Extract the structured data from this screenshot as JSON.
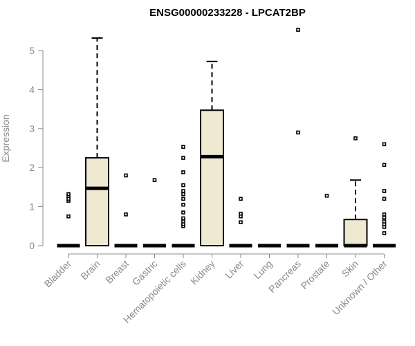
{
  "chart_data": {
    "type": "boxplot",
    "title": "ENSG00000233228 - LPCAT2BP",
    "xlabel": "",
    "ylabel": "Expression",
    "ylim": [
      0,
      5.5
    ],
    "yticks": [
      0,
      1,
      2,
      3,
      4,
      5
    ],
    "box_color": "#efe9d2",
    "categories": [
      "Bladder",
      "Brain",
      "Breast",
      "Gastric",
      "Hematopoietic cells",
      "Kidney",
      "Liver",
      "Lung",
      "Pancreas",
      "Prostate",
      "Skin",
      "Unknown / Other"
    ],
    "boxes": [
      {
        "name": "Bladder",
        "min": 0,
        "q1": 0,
        "median": 0,
        "q3": 0,
        "max": 0,
        "outliers": [
          0.75,
          1.15,
          1.2,
          1.27,
          1.32
        ]
      },
      {
        "name": "Brain",
        "min": 0,
        "q1": 0,
        "median": 1.47,
        "q3": 2.25,
        "max": 5.32,
        "outliers": []
      },
      {
        "name": "Breast",
        "min": 0,
        "q1": 0,
        "median": 0,
        "q3": 0,
        "max": 0,
        "outliers": [
          0.8,
          1.8
        ]
      },
      {
        "name": "Gastric",
        "min": 0,
        "q1": 0,
        "median": 0,
        "q3": 0,
        "max": 0,
        "outliers": [
          1.68
        ]
      },
      {
        "name": "Hematopoietic cells",
        "min": 0,
        "q1": 0,
        "median": 0,
        "q3": 0,
        "max": 0,
        "outliers": [
          0.5,
          0.55,
          0.62,
          0.7,
          0.85,
          1.05,
          1.2,
          1.32,
          1.4,
          1.55,
          1.88,
          2.25,
          2.53
        ]
      },
      {
        "name": "Kidney",
        "min": 0,
        "q1": 0,
        "median": 2.28,
        "q3": 3.47,
        "max": 4.72,
        "outliers": []
      },
      {
        "name": "Liver",
        "min": 0,
        "q1": 0,
        "median": 0,
        "q3": 0,
        "max": 0,
        "outliers": [
          0.6,
          0.75,
          0.82,
          1.2
        ]
      },
      {
        "name": "Lung",
        "min": 0,
        "q1": 0,
        "median": 0,
        "q3": 0,
        "max": 0,
        "outliers": []
      },
      {
        "name": "Pancreas",
        "min": 0,
        "q1": 0,
        "median": 0,
        "q3": 0,
        "max": 0,
        "outliers": [
          2.9,
          5.53
        ]
      },
      {
        "name": "Prostate",
        "min": 0,
        "q1": 0,
        "median": 0,
        "q3": 0,
        "max": 0,
        "outliers": [
          1.28
        ]
      },
      {
        "name": "Skin",
        "min": 0,
        "q1": 0,
        "median": 0,
        "q3": 0.67,
        "max": 1.68,
        "outliers": [
          2.75
        ]
      },
      {
        "name": "Unknown / Other",
        "min": 0,
        "q1": 0,
        "median": 0,
        "q3": 0,
        "max": 0,
        "outliers": [
          0.32,
          0.48,
          0.55,
          0.62,
          0.72,
          0.8,
          1.2,
          1.4,
          2.07,
          2.6
        ]
      }
    ]
  }
}
